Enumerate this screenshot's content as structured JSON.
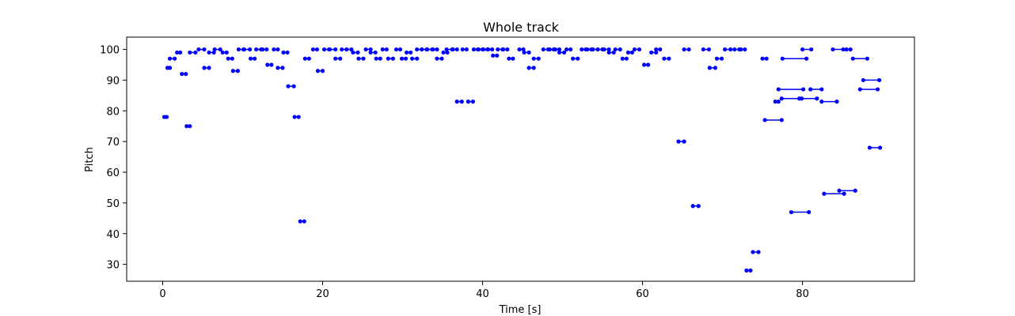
{
  "chart_data": {
    "type": "scatter",
    "title": "Whole track",
    "xlabel": "Time [s]",
    "ylabel": "Pitch",
    "xlim": [
      -4.5,
      94
    ],
    "ylim": [
      24.5,
      104
    ],
    "xticks": [
      0,
      20,
      40,
      60,
      80
    ],
    "yticks": [
      30,
      40,
      50,
      60,
      70,
      80,
      90,
      100
    ],
    "grid": false,
    "marker_color": "#0000ff",
    "notes": [
      [
        0.2,
        0.5,
        78
      ],
      [
        0.6,
        0.9,
        94
      ],
      [
        0.9,
        1.5,
        97
      ],
      [
        1.8,
        2.2,
        99
      ],
      [
        2.4,
        2.9,
        92
      ],
      [
        3.0,
        3.4,
        75
      ],
      [
        3.4,
        4.1,
        99
      ],
      [
        4.5,
        5.2,
        100
      ],
      [
        5.2,
        5.8,
        94
      ],
      [
        5.8,
        6.4,
        99
      ],
      [
        6.5,
        7.2,
        100
      ],
      [
        7.5,
        8.0,
        99
      ],
      [
        8.2,
        8.7,
        97
      ],
      [
        8.8,
        9.4,
        93
      ],
      [
        9.5,
        10.1,
        100
      ],
      [
        10.2,
        10.9,
        100
      ],
      [
        11.0,
        11.5,
        97
      ],
      [
        11.7,
        12.3,
        100
      ],
      [
        12.5,
        13.0,
        100
      ],
      [
        13.1,
        13.6,
        95
      ],
      [
        13.9,
        14.4,
        100
      ],
      [
        14.4,
        15.0,
        94
      ],
      [
        15.1,
        15.6,
        99
      ],
      [
        15.7,
        16.4,
        88
      ],
      [
        16.5,
        17.0,
        78
      ],
      [
        17.2,
        17.7,
        44
      ],
      [
        17.8,
        18.3,
        97
      ],
      [
        18.8,
        19.3,
        100
      ],
      [
        19.4,
        20.0,
        93
      ],
      [
        20.2,
        20.8,
        100
      ],
      [
        20.9,
        21.6,
        100
      ],
      [
        21.6,
        22.2,
        97
      ],
      [
        22.4,
        23.0,
        100
      ],
      [
        23.0,
        23.6,
        100
      ],
      [
        23.8,
        24.4,
        99
      ],
      [
        24.5,
        25.1,
        97
      ],
      [
        25.4,
        26.0,
        100
      ],
      [
        26.0,
        26.6,
        99
      ],
      [
        26.7,
        27.2,
        97
      ],
      [
        27.5,
        28.0,
        100
      ],
      [
        28.2,
        28.8,
        97
      ],
      [
        29.2,
        29.7,
        100
      ],
      [
        29.9,
        30.4,
        97
      ],
      [
        30.5,
        31.0,
        99
      ],
      [
        31.2,
        31.8,
        97
      ],
      [
        31.8,
        32.4,
        100
      ],
      [
        32.4,
        33.0,
        100
      ],
      [
        33.1,
        33.7,
        100
      ],
      [
        33.8,
        34.3,
        100
      ],
      [
        34.3,
        34.9,
        97
      ],
      [
        35.1,
        35.6,
        99
      ],
      [
        35.5,
        36.2,
        100
      ],
      [
        36.3,
        36.8,
        100
      ],
      [
        36.8,
        37.4,
        83
      ],
      [
        37.5,
        38.0,
        100
      ],
      [
        38.2,
        38.8,
        83
      ],
      [
        38.9,
        39.4,
        100
      ],
      [
        39.5,
        40.0,
        100
      ],
      [
        40.1,
        40.6,
        100
      ],
      [
        40.7,
        41.2,
        100
      ],
      [
        41.3,
        41.8,
        98
      ],
      [
        41.9,
        42.5,
        100
      ],
      [
        42.6,
        43.1,
        100
      ],
      [
        43.3,
        43.8,
        97
      ],
      [
        44.6,
        45.1,
        100
      ],
      [
        45.2,
        45.8,
        99
      ],
      [
        45.8,
        46.4,
        94
      ],
      [
        46.4,
        47.0,
        97
      ],
      [
        47.6,
        48.2,
        100
      ],
      [
        48.4,
        48.9,
        100
      ],
      [
        49.1,
        49.6,
        100
      ],
      [
        49.6,
        50.2,
        99
      ],
      [
        50.5,
        51.0,
        100
      ],
      [
        51.3,
        51.9,
        97
      ],
      [
        52.4,
        52.9,
        100
      ],
      [
        53.1,
        53.6,
        100
      ],
      [
        53.8,
        54.4,
        100
      ],
      [
        54.4,
        55.0,
        100
      ],
      [
        55.2,
        55.8,
        100
      ],
      [
        55.8,
        56.4,
        99
      ],
      [
        56.6,
        57.2,
        100
      ],
      [
        57.5,
        58.0,
        97
      ],
      [
        58.2,
        58.7,
        99
      ],
      [
        59.0,
        59.6,
        100
      ],
      [
        60.2,
        60.7,
        95
      ],
      [
        61.1,
        61.7,
        99
      ],
      [
        61.7,
        62.2,
        100
      ],
      [
        62.7,
        63.3,
        97
      ],
      [
        64.5,
        65.2,
        70
      ],
      [
        65.2,
        65.8,
        100
      ],
      [
        66.3,
        67.0,
        49
      ],
      [
        67.6,
        68.3,
        100
      ],
      [
        68.4,
        69.1,
        94
      ],
      [
        69.3,
        69.9,
        97
      ],
      [
        70.3,
        71.0,
        100
      ],
      [
        71.5,
        72.1,
        100
      ],
      [
        72.3,
        72.8,
        100
      ],
      [
        73.0,
        73.5,
        28
      ],
      [
        73.8,
        74.5,
        34
      ],
      [
        75.0,
        75.5,
        97
      ],
      [
        75.3,
        77.4,
        77
      ],
      [
        76.6,
        77.0,
        83
      ],
      [
        77.0,
        80.1,
        87
      ],
      [
        77.4,
        79.6,
        84
      ],
      [
        77.5,
        80.5,
        97
      ],
      [
        78.6,
        80.8,
        47
      ],
      [
        79.9,
        81.8,
        84
      ],
      [
        80.0,
        81.1,
        100
      ],
      [
        81.0,
        82.4,
        87
      ],
      [
        82.4,
        84.3,
        83
      ],
      [
        82.7,
        85.2,
        53
      ],
      [
        83.8,
        85.5,
        100
      ],
      [
        84.6,
        86.6,
        54
      ],
      [
        85.1,
        86.0,
        100
      ],
      [
        86.3,
        88.1,
        97
      ],
      [
        87.2,
        89.4,
        87
      ],
      [
        87.6,
        89.6,
        90
      ],
      [
        88.4,
        89.7,
        68
      ]
    ]
  }
}
